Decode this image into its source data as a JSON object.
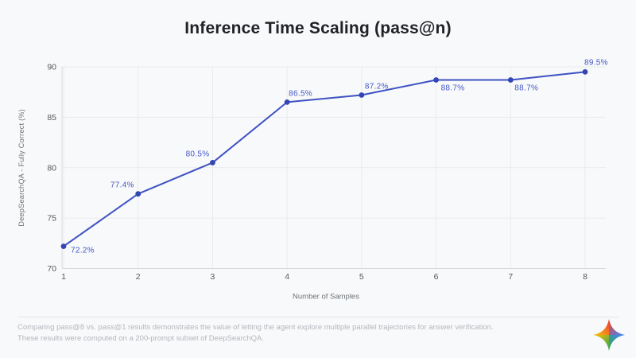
{
  "title": "Inference Time Scaling (pass@n)",
  "background_color": "#f8f9fa",
  "chart_data": {
    "type": "line",
    "x": [
      1,
      2,
      3,
      4,
      5,
      6,
      7,
      8
    ],
    "values": [
      72.2,
      77.4,
      80.5,
      86.5,
      87.2,
      88.7,
      88.7,
      89.5
    ],
    "point_labels": [
      "72.2%",
      "77.4%",
      "80.5%",
      "86.5%",
      "87.2%",
      "88.7%",
      "88.7%",
      "89.5%"
    ],
    "title": "Inference Time Scaling (pass@n)",
    "xlabel": "Number of Samples",
    "ylabel": "DeepSearchQA - Fully Correct (%)",
    "ylim": [
      70,
      90
    ],
    "yticks": [
      70,
      75,
      80,
      85,
      90
    ],
    "xticks": [
      "1",
      "2",
      "3",
      "4",
      "5",
      "6",
      "7",
      "8"
    ],
    "grid": true,
    "legend": "none",
    "line_color": "#3e52c3",
    "point_color": "#3446b4",
    "point_label_color": "#4457c8",
    "grid_color": "#e9ebee",
    "axis_color": "#d8dbde",
    "tick_label_color": "#55585c",
    "axis_title_color": "#6e7377"
  },
  "footer": {
    "line1": "Comparing pass@8 vs. pass@1 results demonstrates the value of letting the agent explore multiple parallel trajectories for answer verification.",
    "line2": "These results were computed on a 200-prompt subset of DeepSearchQA.",
    "logo_icon": "gemini-sparkle-icon",
    "logo_colors": [
      "#ea4335",
      "#4285f4",
      "#34a853",
      "#fbbc05"
    ]
  }
}
